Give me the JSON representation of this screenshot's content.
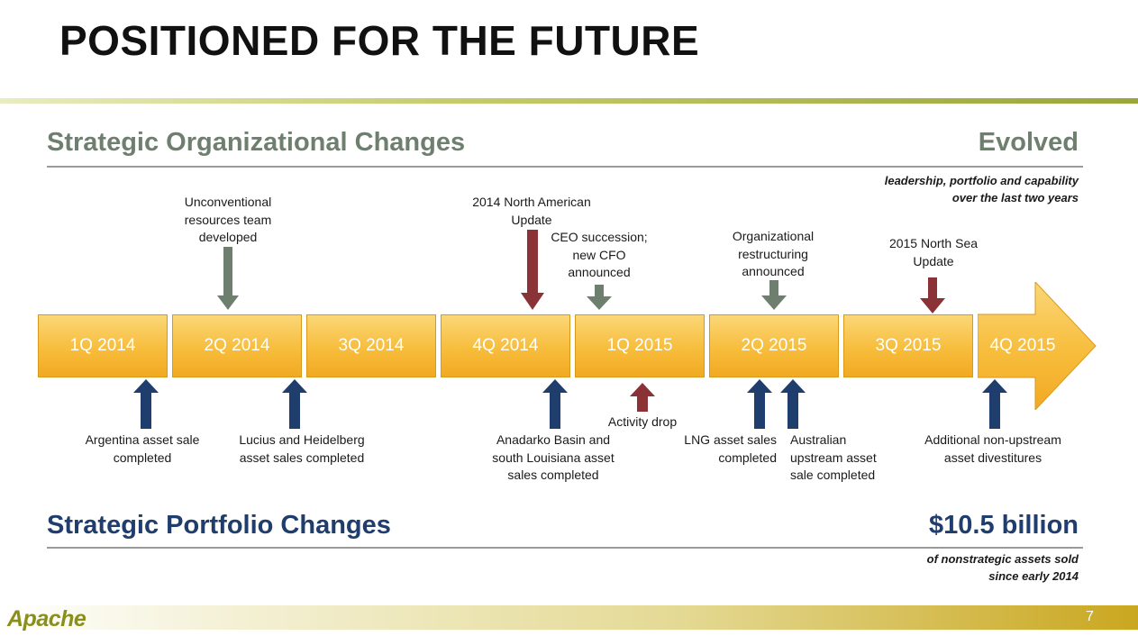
{
  "title": "POSITIONED FOR THE FUTURE",
  "org_section": {
    "heading": "Strategic Organizational Changes",
    "right_heading": "Evolved",
    "note_lines": [
      "leadership, portfolio and capability",
      "over the last two years"
    ]
  },
  "portfolio_section": {
    "heading": "Strategic Portfolio Changes",
    "right_heading": "$10.5 billion",
    "note_lines": [
      "of nonstrategic assets sold",
      "since early 2014"
    ]
  },
  "quarters": [
    "1Q 2014",
    "2Q 2014",
    "3Q 2014",
    "4Q 2014",
    "1Q 2015",
    "2Q 2015",
    "3Q 2015",
    "4Q 2015"
  ],
  "events_above": [
    {
      "lines": [
        "Unconventional",
        "resources team",
        "developed"
      ]
    },
    {
      "lines": [
        "2014  North American",
        "Update"
      ]
    },
    {
      "lines": [
        "CEO succession;",
        "new CFO",
        "announced"
      ]
    },
    {
      "lines": [
        "Organizational",
        "restructuring",
        "announced"
      ]
    },
    {
      "lines": [
        "2015 North Sea",
        "Update"
      ]
    }
  ],
  "events_below": [
    {
      "lines": [
        "Argentina asset sale",
        "completed"
      ]
    },
    {
      "lines": [
        "Lucius and Heidelberg",
        "asset sales completed"
      ]
    },
    {
      "lines": [
        "Anadarko Basin and",
        "south Louisiana asset",
        "sales completed"
      ]
    },
    {
      "lines": [
        "Activity drop"
      ]
    },
    {
      "lines": [
        "LNG asset sales",
        "completed"
      ]
    },
    {
      "lines": [
        "Australian",
        "upstream asset",
        "sale completed"
      ]
    },
    {
      "lines": [
        "Additional non-upstream",
        "asset divestitures"
      ]
    }
  ],
  "colors": {
    "gray_arrow": "#6f7f6f",
    "red_arrow": "#8b3236",
    "navy_arrow": "#1f3d6d",
    "gold": "#f7bd3c"
  },
  "icons": {
    "logo": "apache-logo"
  },
  "logo_text": "Apache",
  "page_number": "7"
}
